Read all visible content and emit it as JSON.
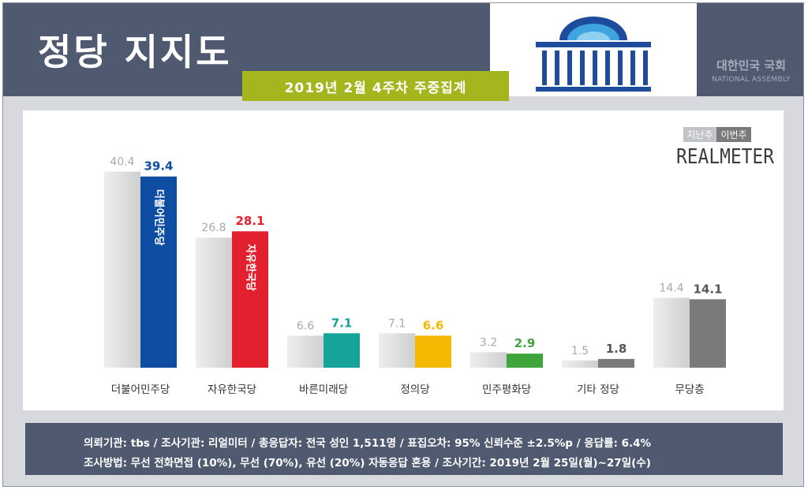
{
  "header": {
    "title": "정당 지지도",
    "subtitle": "2019년 2월 4주차 주중집계",
    "assembly_name_ko": "대한민국 국회",
    "assembly_name_en": "NATIONAL ASSEMBLY"
  },
  "legend": {
    "previous_label": "지난주",
    "current_label": "이번주"
  },
  "brand": "REALMETER",
  "colors": {
    "header_bg": "#4f5a71",
    "subtitle_bg": "#a4b51d",
    "previous_bar": "#d0d0d0",
    "previous_label": "#a9a9a9"
  },
  "chart_data": {
    "type": "bar",
    "title": "정당 지지도",
    "subtitle": "2019년 2월 4주차 주중집계",
    "categories": [
      "더불어민주당",
      "자유한국당",
      "바른미래당",
      "정의당",
      "민주평화당",
      "기타 정당",
      "무당층"
    ],
    "series": [
      {
        "name": "지난주",
        "values": [
          40.4,
          26.8,
          6.6,
          7.1,
          3.2,
          1.5,
          14.4
        ]
      },
      {
        "name": "이번주",
        "values": [
          39.4,
          28.1,
          7.1,
          6.6,
          2.9,
          1.8,
          14.1
        ]
      }
    ],
    "current_colors": [
      "#0e4da2",
      "#e3202e",
      "#15a39a",
      "#f4b800",
      "#3fa53b",
      "#7a7a7a",
      "#7a7a7a"
    ],
    "current_label_colors": [
      "#0e4da2",
      "#e3202e",
      "#15a39a",
      "#f4b800",
      "#3fa53b",
      "#555555",
      "#555555"
    ],
    "bar_texts": [
      "더불어민주당",
      "자유한국당",
      "",
      "",
      "",
      "",
      ""
    ],
    "ylim": [
      0,
      45
    ],
    "grid": false,
    "legend_position": "top-right"
  },
  "footer": {
    "line1": "의뢰기관: tbs / 조사기관: 리얼미터 / 총응답자: 전국 성인 1,511명 / 표집오차: 95% 신뢰수준 ±2.5%p / 응답률: 6.4%",
    "line2": "조사방법: 무선 전화면접 (10%), 무선 (70%), 유선 (20%) 자동응답 혼용 / 조사기간: 2019년 2월 25일(월)~27일(수)"
  }
}
